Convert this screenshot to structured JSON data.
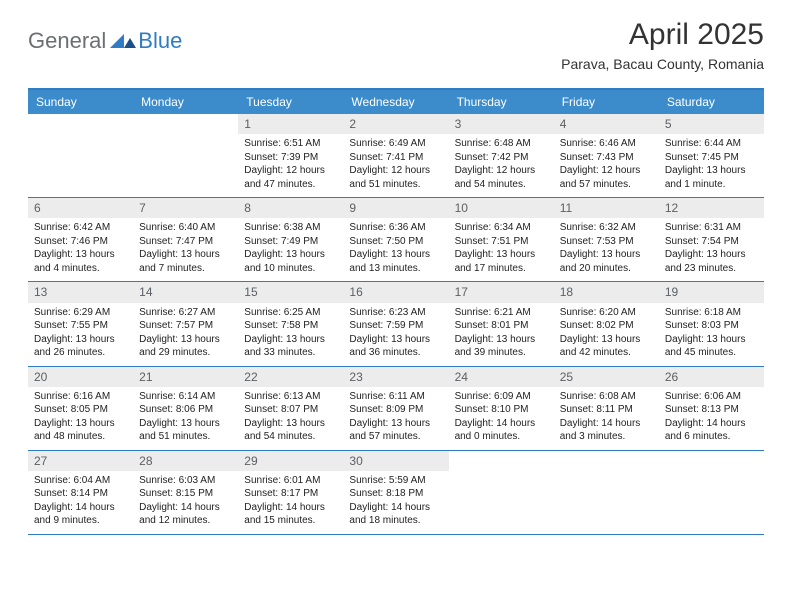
{
  "logo": {
    "general": "General",
    "blue": "Blue"
  },
  "title": "April 2025",
  "location": "Parava, Bacau County, Romania",
  "colors": {
    "header_bg": "#3c8ccc",
    "header_border": "#2f7bc4",
    "daynum_bg": "#ececec",
    "text": "#222222"
  },
  "day_names": [
    "Sunday",
    "Monday",
    "Tuesday",
    "Wednesday",
    "Thursday",
    "Friday",
    "Saturday"
  ],
  "weeks": [
    [
      {
        "num": "",
        "sunrise": "",
        "sunset": "",
        "daylight": ""
      },
      {
        "num": "",
        "sunrise": "",
        "sunset": "",
        "daylight": ""
      },
      {
        "num": "1",
        "sunrise": "Sunrise: 6:51 AM",
        "sunset": "Sunset: 7:39 PM",
        "daylight": "Daylight: 12 hours and 47 minutes."
      },
      {
        "num": "2",
        "sunrise": "Sunrise: 6:49 AM",
        "sunset": "Sunset: 7:41 PM",
        "daylight": "Daylight: 12 hours and 51 minutes."
      },
      {
        "num": "3",
        "sunrise": "Sunrise: 6:48 AM",
        "sunset": "Sunset: 7:42 PM",
        "daylight": "Daylight: 12 hours and 54 minutes."
      },
      {
        "num": "4",
        "sunrise": "Sunrise: 6:46 AM",
        "sunset": "Sunset: 7:43 PM",
        "daylight": "Daylight: 12 hours and 57 minutes."
      },
      {
        "num": "5",
        "sunrise": "Sunrise: 6:44 AM",
        "sunset": "Sunset: 7:45 PM",
        "daylight": "Daylight: 13 hours and 1 minute."
      }
    ],
    [
      {
        "num": "6",
        "sunrise": "Sunrise: 6:42 AM",
        "sunset": "Sunset: 7:46 PM",
        "daylight": "Daylight: 13 hours and 4 minutes."
      },
      {
        "num": "7",
        "sunrise": "Sunrise: 6:40 AM",
        "sunset": "Sunset: 7:47 PM",
        "daylight": "Daylight: 13 hours and 7 minutes."
      },
      {
        "num": "8",
        "sunrise": "Sunrise: 6:38 AM",
        "sunset": "Sunset: 7:49 PM",
        "daylight": "Daylight: 13 hours and 10 minutes."
      },
      {
        "num": "9",
        "sunrise": "Sunrise: 6:36 AM",
        "sunset": "Sunset: 7:50 PM",
        "daylight": "Daylight: 13 hours and 13 minutes."
      },
      {
        "num": "10",
        "sunrise": "Sunrise: 6:34 AM",
        "sunset": "Sunset: 7:51 PM",
        "daylight": "Daylight: 13 hours and 17 minutes."
      },
      {
        "num": "11",
        "sunrise": "Sunrise: 6:32 AM",
        "sunset": "Sunset: 7:53 PM",
        "daylight": "Daylight: 13 hours and 20 minutes."
      },
      {
        "num": "12",
        "sunrise": "Sunrise: 6:31 AM",
        "sunset": "Sunset: 7:54 PM",
        "daylight": "Daylight: 13 hours and 23 minutes."
      }
    ],
    [
      {
        "num": "13",
        "sunrise": "Sunrise: 6:29 AM",
        "sunset": "Sunset: 7:55 PM",
        "daylight": "Daylight: 13 hours and 26 minutes."
      },
      {
        "num": "14",
        "sunrise": "Sunrise: 6:27 AM",
        "sunset": "Sunset: 7:57 PM",
        "daylight": "Daylight: 13 hours and 29 minutes."
      },
      {
        "num": "15",
        "sunrise": "Sunrise: 6:25 AM",
        "sunset": "Sunset: 7:58 PM",
        "daylight": "Daylight: 13 hours and 33 minutes."
      },
      {
        "num": "16",
        "sunrise": "Sunrise: 6:23 AM",
        "sunset": "Sunset: 7:59 PM",
        "daylight": "Daylight: 13 hours and 36 minutes."
      },
      {
        "num": "17",
        "sunrise": "Sunrise: 6:21 AM",
        "sunset": "Sunset: 8:01 PM",
        "daylight": "Daylight: 13 hours and 39 minutes."
      },
      {
        "num": "18",
        "sunrise": "Sunrise: 6:20 AM",
        "sunset": "Sunset: 8:02 PM",
        "daylight": "Daylight: 13 hours and 42 minutes."
      },
      {
        "num": "19",
        "sunrise": "Sunrise: 6:18 AM",
        "sunset": "Sunset: 8:03 PM",
        "daylight": "Daylight: 13 hours and 45 minutes."
      }
    ],
    [
      {
        "num": "20",
        "sunrise": "Sunrise: 6:16 AM",
        "sunset": "Sunset: 8:05 PM",
        "daylight": "Daylight: 13 hours and 48 minutes."
      },
      {
        "num": "21",
        "sunrise": "Sunrise: 6:14 AM",
        "sunset": "Sunset: 8:06 PM",
        "daylight": "Daylight: 13 hours and 51 minutes."
      },
      {
        "num": "22",
        "sunrise": "Sunrise: 6:13 AM",
        "sunset": "Sunset: 8:07 PM",
        "daylight": "Daylight: 13 hours and 54 minutes."
      },
      {
        "num": "23",
        "sunrise": "Sunrise: 6:11 AM",
        "sunset": "Sunset: 8:09 PM",
        "daylight": "Daylight: 13 hours and 57 minutes."
      },
      {
        "num": "24",
        "sunrise": "Sunrise: 6:09 AM",
        "sunset": "Sunset: 8:10 PM",
        "daylight": "Daylight: 14 hours and 0 minutes."
      },
      {
        "num": "25",
        "sunrise": "Sunrise: 6:08 AM",
        "sunset": "Sunset: 8:11 PM",
        "daylight": "Daylight: 14 hours and 3 minutes."
      },
      {
        "num": "26",
        "sunrise": "Sunrise: 6:06 AM",
        "sunset": "Sunset: 8:13 PM",
        "daylight": "Daylight: 14 hours and 6 minutes."
      }
    ],
    [
      {
        "num": "27",
        "sunrise": "Sunrise: 6:04 AM",
        "sunset": "Sunset: 8:14 PM",
        "daylight": "Daylight: 14 hours and 9 minutes."
      },
      {
        "num": "28",
        "sunrise": "Sunrise: 6:03 AM",
        "sunset": "Sunset: 8:15 PM",
        "daylight": "Daylight: 14 hours and 12 minutes."
      },
      {
        "num": "29",
        "sunrise": "Sunrise: 6:01 AM",
        "sunset": "Sunset: 8:17 PM",
        "daylight": "Daylight: 14 hours and 15 minutes."
      },
      {
        "num": "30",
        "sunrise": "Sunrise: 5:59 AM",
        "sunset": "Sunset: 8:18 PM",
        "daylight": "Daylight: 14 hours and 18 minutes."
      },
      {
        "num": "",
        "sunrise": "",
        "sunset": "",
        "daylight": ""
      },
      {
        "num": "",
        "sunrise": "",
        "sunset": "",
        "daylight": ""
      },
      {
        "num": "",
        "sunrise": "",
        "sunset": "",
        "daylight": ""
      }
    ]
  ]
}
